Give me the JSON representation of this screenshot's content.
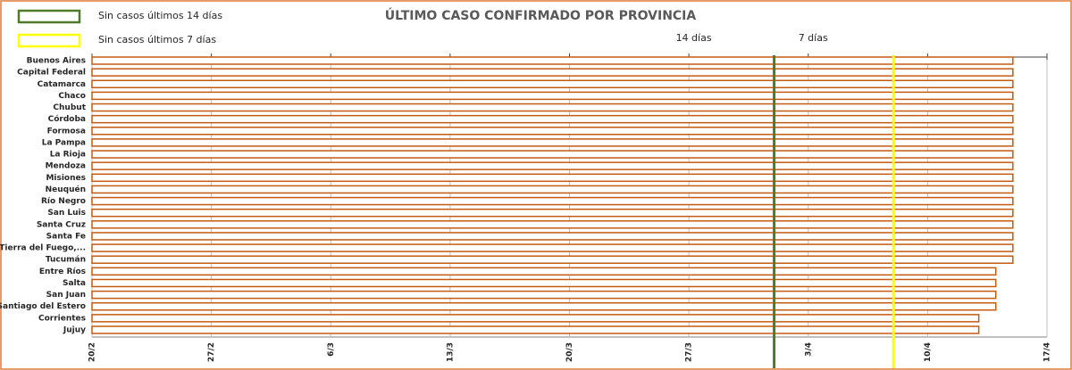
{
  "chart_data": {
    "type": "bar",
    "orientation": "horizontal",
    "title": "ÚLTIMO CASO CONFIRMADO POR PROVINCIA",
    "categories": [
      "Buenos Aires",
      "Capital Federal",
      "Catamarca",
      "Chaco",
      "Chubut",
      "Córdoba",
      "Formosa",
      "La Pampa",
      "La Rioja",
      "Mendoza",
      "Misiones",
      "Neuquén",
      "Río Negro",
      "San Luis",
      "Santa Cruz",
      "Santa Fe",
      "Tierra del Fuego,...",
      "Tucumán",
      "Entre Ríos",
      "Salta",
      "San Juan",
      "Santiago del Estero",
      "Corrientes",
      "Jujuy"
    ],
    "values": [
      "15/4",
      "15/4",
      "15/4",
      "15/4",
      "15/4",
      "15/4",
      "15/4",
      "15/4",
      "15/4",
      "15/4",
      "15/4",
      "15/4",
      "15/4",
      "15/4",
      "15/4",
      "15/4",
      "15/4",
      "15/4",
      "14/4",
      "14/4",
      "14/4",
      "14/4",
      "13/4",
      "13/4"
    ],
    "color": "#c55a11",
    "xlim": [
      "20/2",
      "17/4"
    ],
    "xticks": [
      "20/2",
      "27/2",
      "6/3",
      "13/3",
      "20/3",
      "27/3",
      "3/4",
      "10/4",
      "17/4"
    ],
    "grid": true,
    "reference_lines": [
      {
        "label": "14 días",
        "x": "1/4",
        "color": "#4f7a28"
      },
      {
        "label": "7 días",
        "x": "8/4",
        "color": "#ffff00"
      }
    ],
    "legend": [
      {
        "name": "Sin casos últimos 14 días",
        "color": "#4f7a28"
      },
      {
        "name": "Sin casos últimos 7 días",
        "color": "#ffff00"
      }
    ]
  }
}
